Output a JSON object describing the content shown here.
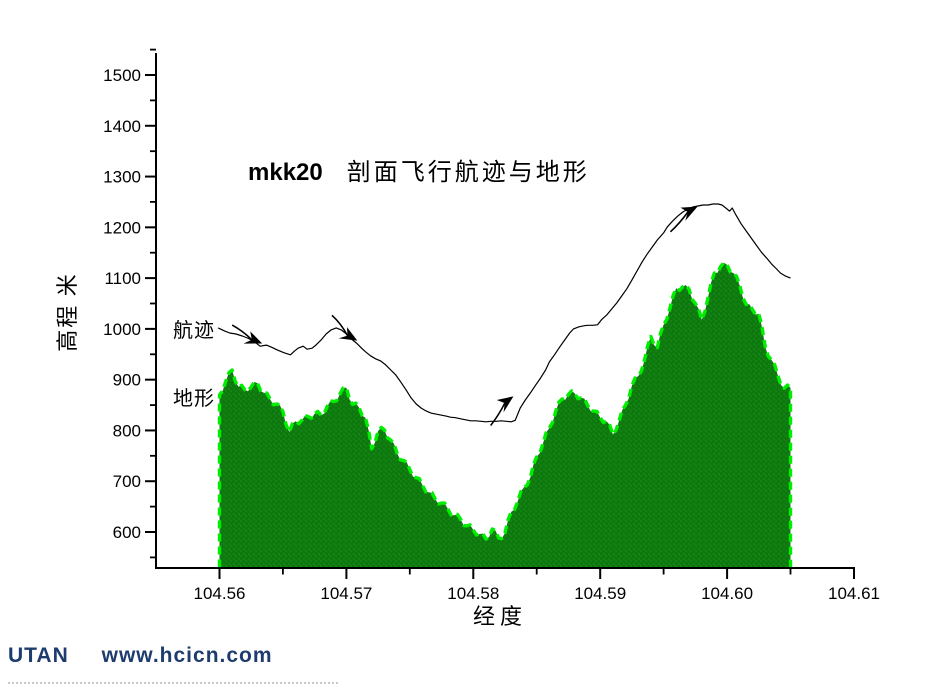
{
  "page": {
    "title_prefix": "mkk20",
    "title_main": "剖面飞行航迹与地形",
    "footer_brand": "UTAN",
    "footer_url": "www.hcicn.com",
    "footer_color": "#1e3c6e"
  },
  "chart_data": {
    "type": "area",
    "title": "mkk20 剖面飞行航迹与地形",
    "xlabel": "经度",
    "ylabel": "高程 米",
    "xlim": [
      104.555,
      104.61
    ],
    "ylim": [
      550,
      1550
    ],
    "grid": false,
    "legend_position": "inline-labels",
    "x_ticks": [
      104.56,
      104.57,
      104.58,
      104.59,
      104.6,
      104.61
    ],
    "x_minor_ticks": [
      104.565,
      104.575,
      104.585,
      104.595,
      104.605
    ],
    "y_ticks": [
      600,
      700,
      800,
      900,
      1000,
      1100,
      1200,
      1300,
      1400,
      1500
    ],
    "y_minor_ticks": [
      550,
      650,
      750,
      850,
      950,
      1050,
      1150,
      1250,
      1350,
      1450,
      1550
    ],
    "axis_color": "#000000",
    "series": [
      {
        "name": "地形",
        "type": "area",
        "fill": "#0d780d",
        "fill_accent": "#1a8c1a",
        "edge": "#00ee00",
        "edge_style": "dashed",
        "x_start": 104.56,
        "x_step": 0.0005,
        "values": [
          870,
          897,
          919,
          886,
          880,
          886,
          893,
          874,
          861,
          852,
          837,
          797,
          818,
          820,
          827,
          833,
          830,
          848,
          857,
          872,
          884,
          851,
          845,
          825,
          764,
          799,
          801,
          781,
          755,
          741,
          723,
          707,
          692,
          678,
          665,
          657,
          645,
          633,
          625,
          612,
          604,
          596,
          586,
          606,
          588,
          598,
          640,
          660,
          688,
          708,
          748,
          775,
          805,
          838,
          862,
          871,
          873,
          864,
          850,
          838,
          825,
          818,
          792,
          820,
          850,
          888,
          907,
          939,
          985,
          963,
          1008,
          1041,
          1080,
          1083,
          1078,
          1050,
          1018,
          1062,
          1110,
          1123,
          1126,
          1110,
          1085,
          1048,
          1038,
          1030,
          965,
          939,
          908,
          883,
          884
        ]
      },
      {
        "name": "航迹",
        "type": "line",
        "color": "#000000",
        "x": [
          104.5599,
          104.5604,
          104.5608,
          104.5613,
          104.5618,
          104.5622,
          104.5627,
          104.5632,
          104.5637,
          104.5641,
          104.5646,
          104.5651,
          104.5656,
          104.5659,
          104.5662,
          104.5666,
          104.5669,
          104.5673,
          104.5676,
          104.568,
          104.5684,
          104.5688,
          104.5692,
          104.5696,
          104.57,
          104.5704,
          104.5708,
          104.5712,
          104.5715,
          104.5719,
          104.5723,
          104.5727,
          104.5731,
          104.5735,
          104.5739,
          104.5743,
          104.5747,
          104.5751,
          104.5755,
          104.5759,
          104.5763,
          104.5767,
          104.5771,
          104.5775,
          104.5779,
          104.5782,
          104.5786,
          104.579,
          104.5794,
          104.5798,
          104.5802,
          104.5806,
          104.581,
          104.5814,
          104.5818,
          104.5822,
          104.5826,
          104.583,
          104.5833,
          104.5837,
          104.5841,
          104.5845,
          104.5849,
          104.5853,
          104.5857,
          104.586,
          104.5864,
          104.5868,
          104.5872,
          104.5876,
          104.5879,
          104.5883,
          104.5887,
          104.589,
          104.5894,
          104.5898,
          104.5901,
          104.5905,
          104.5909,
          104.5913,
          104.5917,
          104.5921,
          104.5925,
          104.5929,
          104.5933,
          104.5937,
          104.5941,
          104.5945,
          104.595,
          104.5953,
          104.5957,
          104.5961,
          104.5965,
          104.5969,
          104.5973,
          104.5977,
          104.5981,
          104.5985,
          104.5989,
          104.5993,
          104.5996,
          104.5999,
          104.6002,
          104.6004,
          104.6007,
          104.6011,
          104.6015,
          104.6019,
          104.6023,
          104.6027,
          104.6031,
          104.6035,
          104.6039,
          104.6042,
          104.6046,
          104.605
        ],
        "y": [
          1002,
          996,
          992,
          990,
          986,
          982,
          976,
          966,
          968,
          964,
          958,
          953,
          949,
          956,
          962,
          966,
          960,
          962,
          968,
          978,
          990,
          998,
          1002,
          998,
          990,
          980,
          972,
          962,
          955,
          947,
          941,
          937,
          929,
          919,
          909,
          895,
          880,
          864,
          852,
          844,
          838,
          834,
          832,
          830,
          828,
          826,
          825,
          823,
          821,
          819,
          819,
          818,
          817,
          818,
          818,
          819,
          818,
          817,
          820,
          844,
          860,
          874,
          889,
          903,
          919,
          935,
          949,
          964,
          978,
          992,
          1000,
          1004,
          1006,
          1007,
          1007,
          1008,
          1018,
          1027,
          1039,
          1051,
          1065,
          1079,
          1096,
          1114,
          1132,
          1147,
          1161,
          1175,
          1189,
          1201,
          1212,
          1222,
          1230,
          1236,
          1240,
          1242,
          1244,
          1244,
          1246,
          1246,
          1244,
          1238,
          1232,
          1238,
          1224,
          1207,
          1193,
          1179,
          1165,
          1151,
          1140,
          1128,
          1118,
          1110,
          1104,
          1100
        ]
      }
    ],
    "annotations": {
      "series_labels": [
        {
          "text": "航迹",
          "x": 104.5584,
          "y": 1006
        },
        {
          "text": "地形",
          "x": 104.5584,
          "y": 872
        }
      ],
      "arrows": [
        {
          "x": 104.5633,
          "y": 972,
          "angle": 25,
          "curve": -0.6
        },
        {
          "x": 104.5708,
          "y": 978,
          "angle": 32,
          "curve": -1
        },
        {
          "x": 104.5831,
          "y": 866,
          "angle": -33,
          "curve": 1
        },
        {
          "x": 104.5976,
          "y": 1240,
          "angle": -24,
          "curve": 1
        }
      ]
    }
  }
}
